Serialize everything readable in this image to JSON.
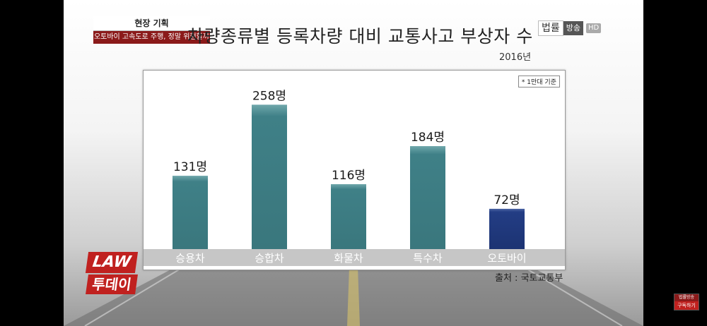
{
  "segment": {
    "label": "현장 기획",
    "headline": "오토바이 고속도로 주행, 정말 위험할까"
  },
  "title": "차량종류별 등록차량 대비 교통사고 부상자 수",
  "year": "2016년",
  "channel_logo": {
    "name_a": "법률",
    "name_b": "방송",
    "hd": "HD"
  },
  "note": "* 1만대 기준",
  "source": "출처 : 국토교통부",
  "show_logo": {
    "line1": "LAW",
    "line2": "투데이"
  },
  "subscribe": {
    "brand": "법률방송",
    "label": "구독하기"
  },
  "chart_data": {
    "type": "bar",
    "categories": [
      "승용차",
      "승합차",
      "화물차",
      "특수차",
      "오토바이"
    ],
    "values": [
      131,
      258,
      116,
      184,
      72
    ],
    "value_labels": [
      "131명",
      "258명",
      "116명",
      "184명",
      "72명"
    ],
    "ylim": [
      0,
      290
    ],
    "grid": false,
    "colors": [
      "#3b7a80",
      "#3b7a80",
      "#3b7a80",
      "#3b7a80",
      "#1d3577"
    ]
  }
}
